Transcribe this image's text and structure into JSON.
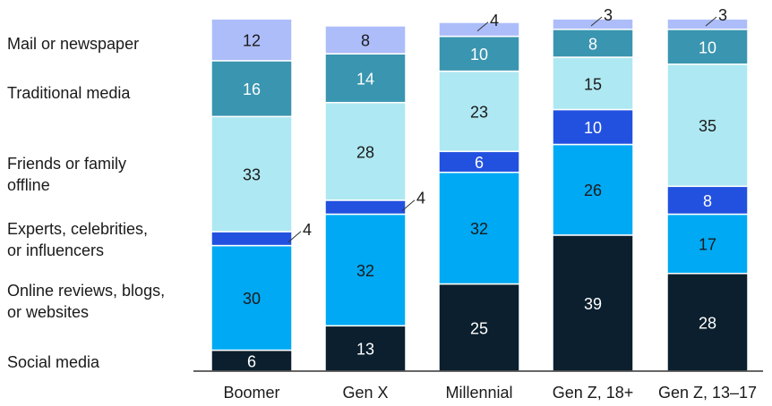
{
  "chart_data": {
    "type": "bar",
    "stacked": true,
    "orientation": "vertical",
    "categories": [
      "Boomer",
      "Gen X",
      "Millennial",
      "Gen Z, 18+",
      "Gen Z, 13–17"
    ],
    "series": [
      {
        "name": "Social media",
        "values": [
          6,
          13,
          25,
          39,
          28
        ],
        "color": "#0b1f2e",
        "label_color": "#ffffff"
      },
      {
        "name": "Online reviews, blogs, or websites",
        "values": [
          30,
          32,
          32,
          26,
          17
        ],
        "color": "#00a9f4",
        "label_color": "#1a1a1a"
      },
      {
        "name": "Experts, celebrities, or influencers",
        "values": [
          4,
          4,
          6,
          10,
          8
        ],
        "color": "#2251e0",
        "label_color": "#ffffff"
      },
      {
        "name": "Friends or family offline",
        "values": [
          33,
          28,
          23,
          15,
          35
        ],
        "color": "#aee8f2",
        "label_color": "#1a1a1a"
      },
      {
        "name": "Traditional media",
        "values": [
          16,
          14,
          10,
          8,
          10
        ],
        "color": "#3a95b0",
        "label_color": "#ffffff"
      },
      {
        "name": "Mail or newspaper",
        "values": [
          12,
          8,
          4,
          3,
          3
        ],
        "color": "#adbdfa",
        "label_color": "#1a1a1a"
      }
    ],
    "legend_lines": [
      [
        "Social media"
      ],
      [
        "Online reviews, blogs,",
        "or websites"
      ],
      [
        "Experts, celebrities,",
        "or influencers"
      ],
      [
        "Friends or family",
        "offline"
      ],
      [
        "Traditional media"
      ],
      [
        "Mail or newspaper"
      ]
    ],
    "legend_placement": "left",
    "ylim": [
      0,
      100
    ],
    "grid": false,
    "title": "",
    "xlabel": "",
    "ylabel": ""
  }
}
